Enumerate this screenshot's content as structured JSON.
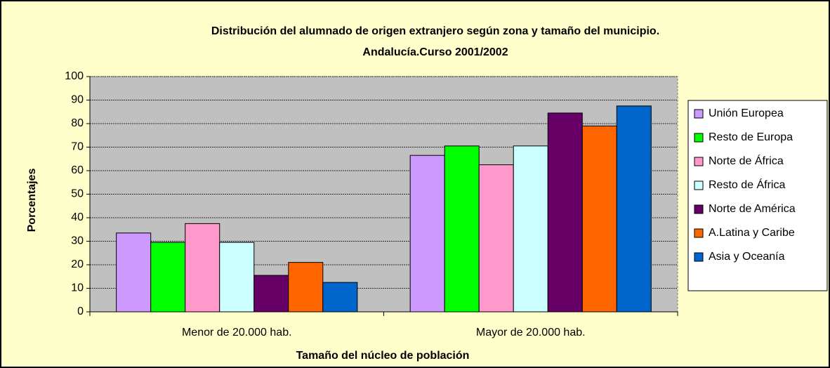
{
  "chart_data": {
    "type": "bar",
    "title": "Distribución del alumnado de origen extranjero según zona y tamaño del municipio.",
    "subtitle": "Andalucía.Curso 2001/2002",
    "x_label": "Tamaño del núcleo de población",
    "y_label": "Porcentajes",
    "categories": [
      "Menor de 20.000 hab.",
      "Mayor de 20.000 hab."
    ],
    "series": [
      {
        "name": "Unión Europea",
        "color": "#cc99ff",
        "values": [
          33.5,
          66.5
        ]
      },
      {
        "name": "Resto de Europa",
        "color": "#00ff00",
        "values": [
          29.5,
          70.5
        ]
      },
      {
        "name": "Norte de África",
        "color": "#ff99cc",
        "values": [
          37.5,
          62.5
        ]
      },
      {
        "name": "Resto de África",
        "color": "#ccffff",
        "values": [
          29.5,
          70.5
        ]
      },
      {
        "name": "Norte de América",
        "color": "#660066",
        "values": [
          15.5,
          84.5
        ]
      },
      {
        "name": "A.Latina y Caribe",
        "color": "#ff6600",
        "values": [
          21,
          79
        ]
      },
      {
        "name": "Asia y Oceanía",
        "color": "#0066cc",
        "values": [
          12.5,
          87.5
        ]
      }
    ],
    "ylim": [
      0,
      100
    ],
    "yticks": [
      0,
      10,
      20,
      30,
      40,
      50,
      60,
      70,
      80,
      90,
      100
    ],
    "grid": true,
    "legend": "right"
  }
}
